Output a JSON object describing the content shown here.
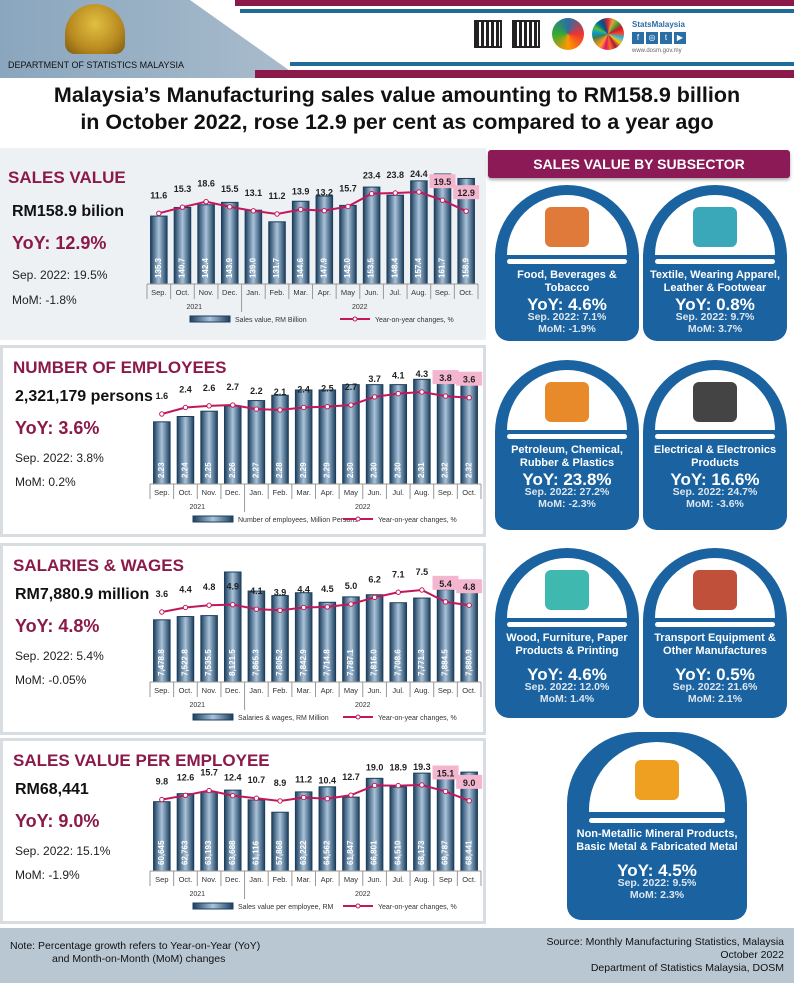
{
  "header": {
    "department": "DEPARTMENT OF STATISTICS MALAYSIA",
    "brand": "StatsMalaysia",
    "website": "www.dosm.gov.my",
    "colors": {
      "maroon": "#8b1a4a",
      "blue": "#1f6b9a"
    }
  },
  "title_line1": "Malaysia’s Manufacturing sales value amounting to RM158.9 billion",
  "title_line2": "in October 2022, rose 12.9 per cent as compared to a year ago",
  "panels": [
    {
      "title": "SALES VALUE",
      "value": "RM158.9 bilion",
      "yoy": "YoY: 12.9%",
      "sep": "Sep. 2022: 19.5%",
      "mom": "MoM: -1.8%"
    },
    {
      "title": "NUMBER OF EMPLOYEES",
      "value": "2,321,179 persons",
      "yoy": "YoY: 3.6%",
      "sep": "Sep. 2022: 3.8%",
      "mom": "MoM: 0.2%"
    },
    {
      "title": "SALARIES & WAGES",
      "value": "RM7,880.9 million",
      "yoy": "YoY: 4.8%",
      "sep": "Sep. 2022: 5.4%",
      "mom": "MoM: -0.05%"
    },
    {
      "title": "SALES VALUE PER EMPLOYEE",
      "value": "RM68,441",
      "yoy": "YoY: 9.0%",
      "sep": "Sep. 2022: 15.1%",
      "mom": "MoM: -1.9%"
    }
  ],
  "chart_data": [
    {
      "type": "bar+line",
      "categories": [
        "Sep.",
        "Oct.",
        "Nov.",
        "Dec.",
        "Jan.",
        "Feb.",
        "Mar.",
        "Apr.",
        "May",
        "Jun.",
        "Jul.",
        "Aug.",
        "Sep.",
        "Oct."
      ],
      "years": [
        "2021",
        "2022"
      ],
      "bar_labels": [
        "135.3",
        "140.7",
        "142.4",
        "143.9",
        "139.0",
        "131.7",
        "144.6",
        "147.9",
        "142.0",
        "153.5",
        "148.4",
        "157.4",
        "161.7",
        "158.9"
      ],
      "series": [
        {
          "name": "Sales value, RM Billion",
          "values": [
            135.3,
            140.7,
            142.4,
            143.9,
            139.0,
            131.7,
            144.6,
            147.9,
            142.0,
            153.5,
            148.4,
            157.4,
            161.7,
            158.9
          ]
        },
        {
          "name": "Year-on-year changes, %",
          "values": [
            11.6,
            15.3,
            18.6,
            15.5,
            13.1,
            11.2,
            13.9,
            13.2,
            15.7,
            23.4,
            23.8,
            24.4,
            19.5,
            12.9
          ]
        }
      ]
    },
    {
      "type": "bar+line",
      "categories": [
        "Sep.",
        "Oct.",
        "Nov.",
        "Dec.",
        "Jan.",
        "Feb.",
        "Mar.",
        "Apr.",
        "May",
        "Jun.",
        "Jul.",
        "Aug.",
        "Sep.",
        "Oct."
      ],
      "years": [
        "2021",
        "2022"
      ],
      "bar_labels": [
        "2.23",
        "2.24",
        "2.25",
        "2.26",
        "2.27",
        "2.28",
        "2.29",
        "2.29",
        "2.30",
        "2.30",
        "2.30",
        "2.31",
        "2.32",
        "2.32"
      ],
      "series": [
        {
          "name": "Number of employees, Million Persons",
          "values": [
            2.23,
            2.24,
            2.25,
            2.26,
            2.27,
            2.28,
            2.29,
            2.29,
            2.3,
            2.3,
            2.3,
            2.31,
            2.32,
            2.32
          ]
        },
        {
          "name": "Year-on-year changes, %",
          "values": [
            1.6,
            2.4,
            2.6,
            2.7,
            2.2,
            2.1,
            2.4,
            2.5,
            2.7,
            3.7,
            4.1,
            4.3,
            3.8,
            3.6
          ]
        }
      ]
    },
    {
      "type": "bar+line",
      "categories": [
        "Sep.",
        "Oct.",
        "Nov.",
        "Dec.",
        "Jan.",
        "Feb.",
        "Mar.",
        "Apr.",
        "May",
        "Jun.",
        "Jul.",
        "Aug.",
        "Sep.",
        "Oct."
      ],
      "years": [
        "2021",
        "2022"
      ],
      "bar_labels": [
        "7,478.8",
        "7,522.8",
        "7,535.5",
        "8,121.5",
        "7,865.3",
        "7,805.2",
        "7,842.9",
        "7,714.8",
        "7,787.1",
        "7,816.0",
        "7,708.6",
        "7,771.3",
        "7,884.5",
        "7,880.9"
      ],
      "series": [
        {
          "name": "Salaries & wages, RM Million",
          "values": [
            7478.8,
            7522.8,
            7535.5,
            8121.5,
            7865.3,
            7805.2,
            7842.9,
            7714.8,
            7787.1,
            7816.0,
            7708.6,
            7771.3,
            7884.5,
            7880.9
          ]
        },
        {
          "name": "Year-on-year changes, %",
          "values": [
            3.6,
            4.4,
            4.8,
            4.9,
            4.1,
            3.9,
            4.4,
            4.5,
            5.0,
            6.2,
            7.1,
            7.5,
            5.4,
            4.8
          ]
        }
      ]
    },
    {
      "type": "bar+line",
      "categories": [
        "Sep",
        "Oct.",
        "Nov.",
        "Dec.",
        "Jan.",
        "Feb.",
        "Mar.",
        "Apr.",
        "May",
        "Jun.",
        "Jul.",
        "Aug.",
        "Sep",
        "Oct."
      ],
      "years": [
        "2021",
        "2022"
      ],
      "bar_labels": [
        "60,645",
        "62,763",
        "63,193",
        "63,688",
        "61,116",
        "57,868",
        "63,222",
        "64,562",
        "61,847",
        "66,801",
        "64,510",
        "68,173",
        "69,787",
        "68,441"
      ],
      "series": [
        {
          "name": "Sales value per employee, RM",
          "values": [
            60645,
            62763,
            63193,
            63688,
            61116,
            57868,
            63222,
            64562,
            61847,
            66801,
            64510,
            68173,
            69787,
            68441
          ]
        },
        {
          "name": "Year-on-year changes, %",
          "values": [
            9.8,
            12.6,
            15.7,
            12.4,
            10.7,
            8.9,
            11.2,
            10.4,
            12.7,
            19.0,
            18.9,
            19.3,
            15.1,
            9.0
          ]
        }
      ]
    }
  ],
  "subsector": {
    "heading": "SALES VALUE BY SUBSECTOR",
    "card_color": "#1a63a0",
    "cards": [
      {
        "name": "Food, Beverages & Tobacco",
        "yoy": "YoY: 4.6%",
        "sep": "Sep. 2022:  7.1%",
        "mom": "MoM: -1.9%",
        "icon": "grocery-basket-icon"
      },
      {
        "name": "Textile, Wearing Apparel, Leather & Footwear",
        "yoy": "YoY: 0.8%",
        "sep": "Sep. 2022:  9.7%",
        "mom": "MoM: 3.7%",
        "icon": "clothing-icon"
      },
      {
        "name": "Petroleum, Chemical, Rubber & Plastics",
        "yoy": "YoY: 23.8%",
        "sep": "Sep. 2022: 27.2%",
        "mom": "MoM: -2.3%",
        "icon": "fuel-pump-icon"
      },
      {
        "name": "Electrical & Electronics Products",
        "yoy": "YoY: 16.6%",
        "sep": "Sep. 2022:  24.7%",
        "mom": "MoM: -3.6%",
        "icon": "appliances-icon"
      },
      {
        "name": "Wood, Furniture, Paper Products & Printing",
        "yoy": "YoY: 4.6%",
        "sep": "Sep. 2022:  12.0%",
        "mom": "MoM: 1.4%",
        "icon": "sofa-icon"
      },
      {
        "name": "Transport Equipment & Other Manufactures",
        "yoy": "YoY: 0.5%",
        "sep": "Sep. 2022:  21.6%",
        "mom": "MoM: 2.1%",
        "icon": "vehicles-icon"
      },
      {
        "name": "Non-Metallic Mineral Products, Basic Metal & Fabricated Metal",
        "yoy": "YoY: 4.5%",
        "sep": "Sep. 2022:  9.5%",
        "mom": "MoM: 2.3%",
        "icon": "metal-tools-icon"
      }
    ]
  },
  "footer": {
    "note1": "Note: Percentage growth refers to Year-on-Year (YoY)",
    "note2": "and Month-on-Month (MoM) changes",
    "src1": "Source: Monthly Manufacturing Statistics, Malaysia",
    "src2": "October 2022",
    "src3": "Department of Statistics Malaysia, DOSM"
  }
}
